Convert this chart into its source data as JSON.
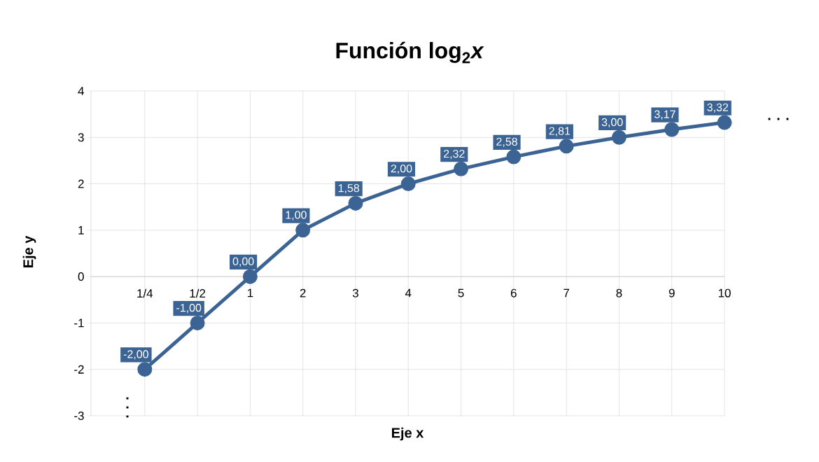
{
  "chart_data": {
    "type": "line",
    "title": "Función log$_{2}$*x*",
    "xlabel": "Eje x",
    "ylabel": "Eje y",
    "categories": [
      "1/4",
      "1/2",
      "1",
      "2",
      "3",
      "4",
      "5",
      "6",
      "7",
      "8",
      "9",
      "10"
    ],
    "series": [
      {
        "color": "#3b6494",
        "values": [
          -2,
          -1,
          0,
          1,
          1.58,
          2,
          2.32,
          2.58,
          2.81,
          3,
          3.17,
          3.32
        ],
        "value_labels": [
          "-2,00",
          "-1,00",
          "0,00",
          "1,00",
          "1,58",
          "2,00",
          "2,32",
          "2,58",
          "2,81",
          "3,00",
          "3,17",
          "3,32"
        ]
      }
    ],
    "ylim": [
      -3,
      4
    ],
    "yticks": [
      -3,
      -2,
      -1,
      0,
      1,
      2,
      3,
      4
    ],
    "grid": true,
    "marker": "circle",
    "line_style": "solid",
    "annotations": [
      ". . .",
      ". . ."
    ]
  }
}
